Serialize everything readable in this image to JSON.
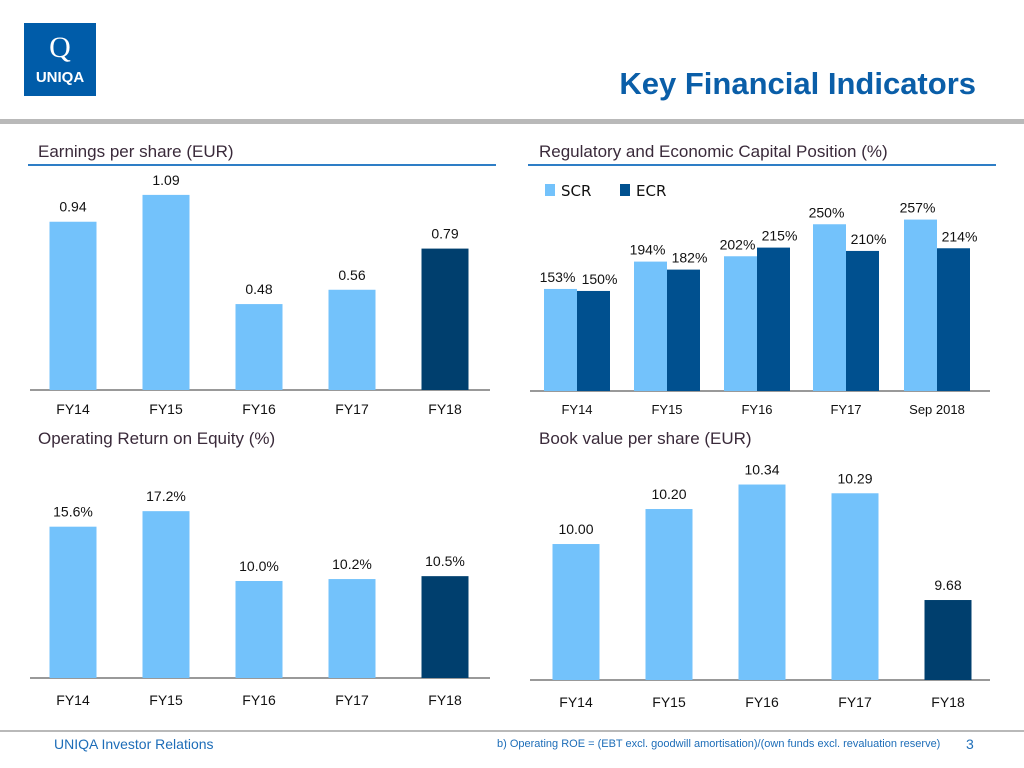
{
  "header": {
    "logo_text": "UNIQA",
    "title": "Key Financial Indicators"
  },
  "footer": {
    "left": "UNIQA Investor Relations",
    "note": "b) Operating ROE = (EBT excl. goodwill amortisation)/(own funds excl. revaluation reserve)",
    "page": "3"
  },
  "colors": {
    "light": "#73c2fb",
    "dark": "#003f6e",
    "ecr": "#00508f",
    "accent": "#0a5ea8"
  },
  "chart_data": [
    {
      "type": "bar",
      "title": "Earnings per share (EUR)",
      "categories": [
        "FY14",
        "FY15",
        "FY16",
        "FY17",
        "FY18"
      ],
      "values": [
        0.94,
        1.09,
        0.48,
        0.56,
        0.79
      ],
      "labels": [
        "0.94",
        "1.09",
        "0.48",
        "0.56",
        "0.79"
      ],
      "highlight_last": true
    },
    {
      "type": "bar",
      "title": "Regulatory and Economic Capital Position (%)",
      "categories": [
        "FY14",
        "FY15",
        "FY16",
        "FY17",
        "Sep 2018"
      ],
      "series": [
        {
          "name": "SCR",
          "values": [
            153,
            194,
            202,
            250,
            257
          ],
          "labels": [
            "153%",
            "194%",
            "202%",
            "250%",
            "257%"
          ]
        },
        {
          "name": "ECR",
          "values": [
            150,
            182,
            215,
            210,
            214
          ],
          "labels": [
            "150%",
            "182%",
            "215%",
            "210%",
            "214%"
          ]
        }
      ],
      "legend": "top-left"
    },
    {
      "type": "bar",
      "title": "Operating Return on Equity (%)",
      "categories": [
        "FY14",
        "FY15",
        "FY16",
        "FY17",
        "FY18"
      ],
      "values": [
        15.6,
        17.2,
        10.0,
        10.2,
        10.5
      ],
      "labels": [
        "15.6%",
        "17.2%",
        "10.0%",
        "10.2%",
        "10.5%"
      ],
      "highlight_last": true
    },
    {
      "type": "bar",
      "title": "Book value per share (EUR)",
      "categories": [
        "FY14",
        "FY15",
        "FY16",
        "FY17",
        "FY18"
      ],
      "values": [
        10.0,
        10.2,
        10.34,
        10.29,
        9.68
      ],
      "labels": [
        "10.00",
        "10.20",
        "10.34",
        "10.29",
        "9.68"
      ],
      "highlight_last": true
    }
  ]
}
